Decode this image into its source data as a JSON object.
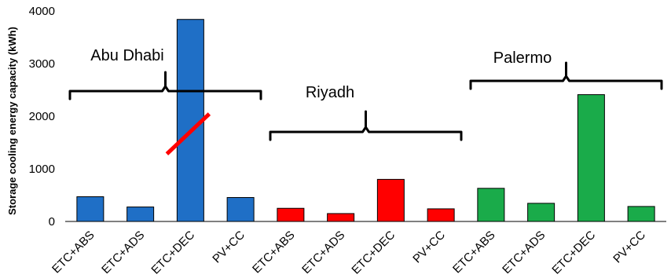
{
  "chart_data": {
    "type": "bar",
    "title": "",
    "xlabel": "",
    "ylabel": "Storage cooling energy capacity (kWh)",
    "ylim": [
      0,
      4000
    ],
    "yticks": [
      0,
      1000,
      2000,
      3000,
      4000
    ],
    "grid": false,
    "legend": "none",
    "categories": [
      "ETC+ABS",
      "ETC+ADS",
      "ETC+DEC",
      "PV+CC",
      "ETC+ABS",
      "ETC+ADS",
      "ETC+DEC",
      "PV+CC",
      "ETC+ABS",
      "ETC+ADS",
      "ETC+DEC",
      "PV+CC"
    ],
    "groups": [
      {
        "label": "Abu Dhabi",
        "color": "#1f6fc6",
        "values": [
          470,
          275,
          3840,
          455
        ]
      },
      {
        "label": "Riyadh",
        "color": "#ff0000",
        "values": [
          250,
          150,
          800,
          240
        ]
      },
      {
        "label": "Palermo",
        "color": "#1aab4a",
        "values": [
          630,
          345,
          2410,
          285
        ]
      }
    ],
    "annotation": {
      "type": "strike-line",
      "color": "#ff0000",
      "bar_index": 2
    }
  }
}
